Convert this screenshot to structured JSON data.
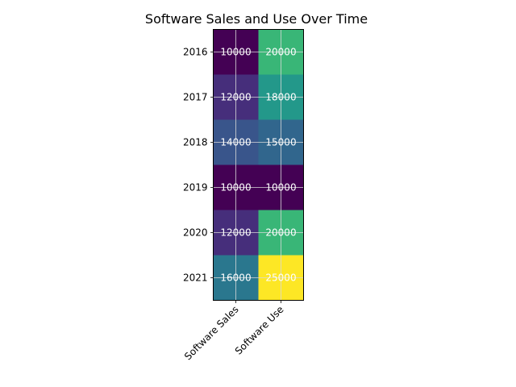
{
  "chart_data": {
    "type": "heatmap",
    "title": "Software Sales and Use Over Time",
    "xlabel": "",
    "ylabel": "",
    "columns": [
      "Software Sales",
      "Software Use"
    ],
    "rows": [
      "2016",
      "2017",
      "2018",
      "2019",
      "2020",
      "2021"
    ],
    "values": [
      [
        10000,
        20000
      ],
      [
        12000,
        18000
      ],
      [
        14000,
        15000
      ],
      [
        10000,
        10000
      ],
      [
        12000,
        20000
      ],
      [
        16000,
        25000
      ]
    ],
    "value_range": [
      10000,
      25000
    ],
    "colormap": "viridis",
    "cell_labels_shown": true,
    "grid": true
  }
}
